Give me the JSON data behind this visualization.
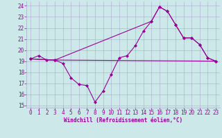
{
  "xlabel": "Windchill (Refroidissement éolien,°C)",
  "bg_color": "#cce8e8",
  "line_color": "#990099",
  "grid_color": "#aaaacc",
  "ylim": [
    14.8,
    24.4
  ],
  "xlim": [
    -0.5,
    23.5
  ],
  "yticks": [
    15,
    16,
    17,
    18,
    19,
    20,
    21,
    22,
    23,
    24
  ],
  "xticks": [
    0,
    1,
    2,
    3,
    4,
    5,
    6,
    7,
    8,
    9,
    10,
    11,
    12,
    13,
    14,
    15,
    16,
    17,
    18,
    19,
    20,
    21,
    22,
    23
  ],
  "series1": {
    "x": [
      0,
      1,
      2,
      3,
      4,
      5,
      6,
      7,
      8,
      9,
      10,
      11,
      12,
      13,
      14,
      15,
      16,
      17,
      18,
      19,
      20,
      21,
      22,
      23
    ],
    "y": [
      19.2,
      19.5,
      19.1,
      19.1,
      18.8,
      17.5,
      16.9,
      16.8,
      15.3,
      16.3,
      17.8,
      19.3,
      19.5,
      20.4,
      21.7,
      22.6,
      23.9,
      23.5,
      22.3,
      21.1,
      21.1,
      20.5,
      19.3,
      19.0
    ]
  },
  "series2": {
    "x": [
      0,
      3,
      23
    ],
    "y": [
      19.2,
      19.1,
      19.0
    ]
  },
  "series3": {
    "x": [
      0,
      3,
      15,
      16,
      17,
      18,
      19,
      20,
      21,
      22,
      23
    ],
    "y": [
      19.2,
      19.1,
      22.6,
      23.9,
      23.5,
      22.3,
      21.1,
      21.1,
      20.5,
      19.3,
      19.0
    ]
  },
  "tick_fontsize": 5.5,
  "xlabel_fontsize": 5.5
}
